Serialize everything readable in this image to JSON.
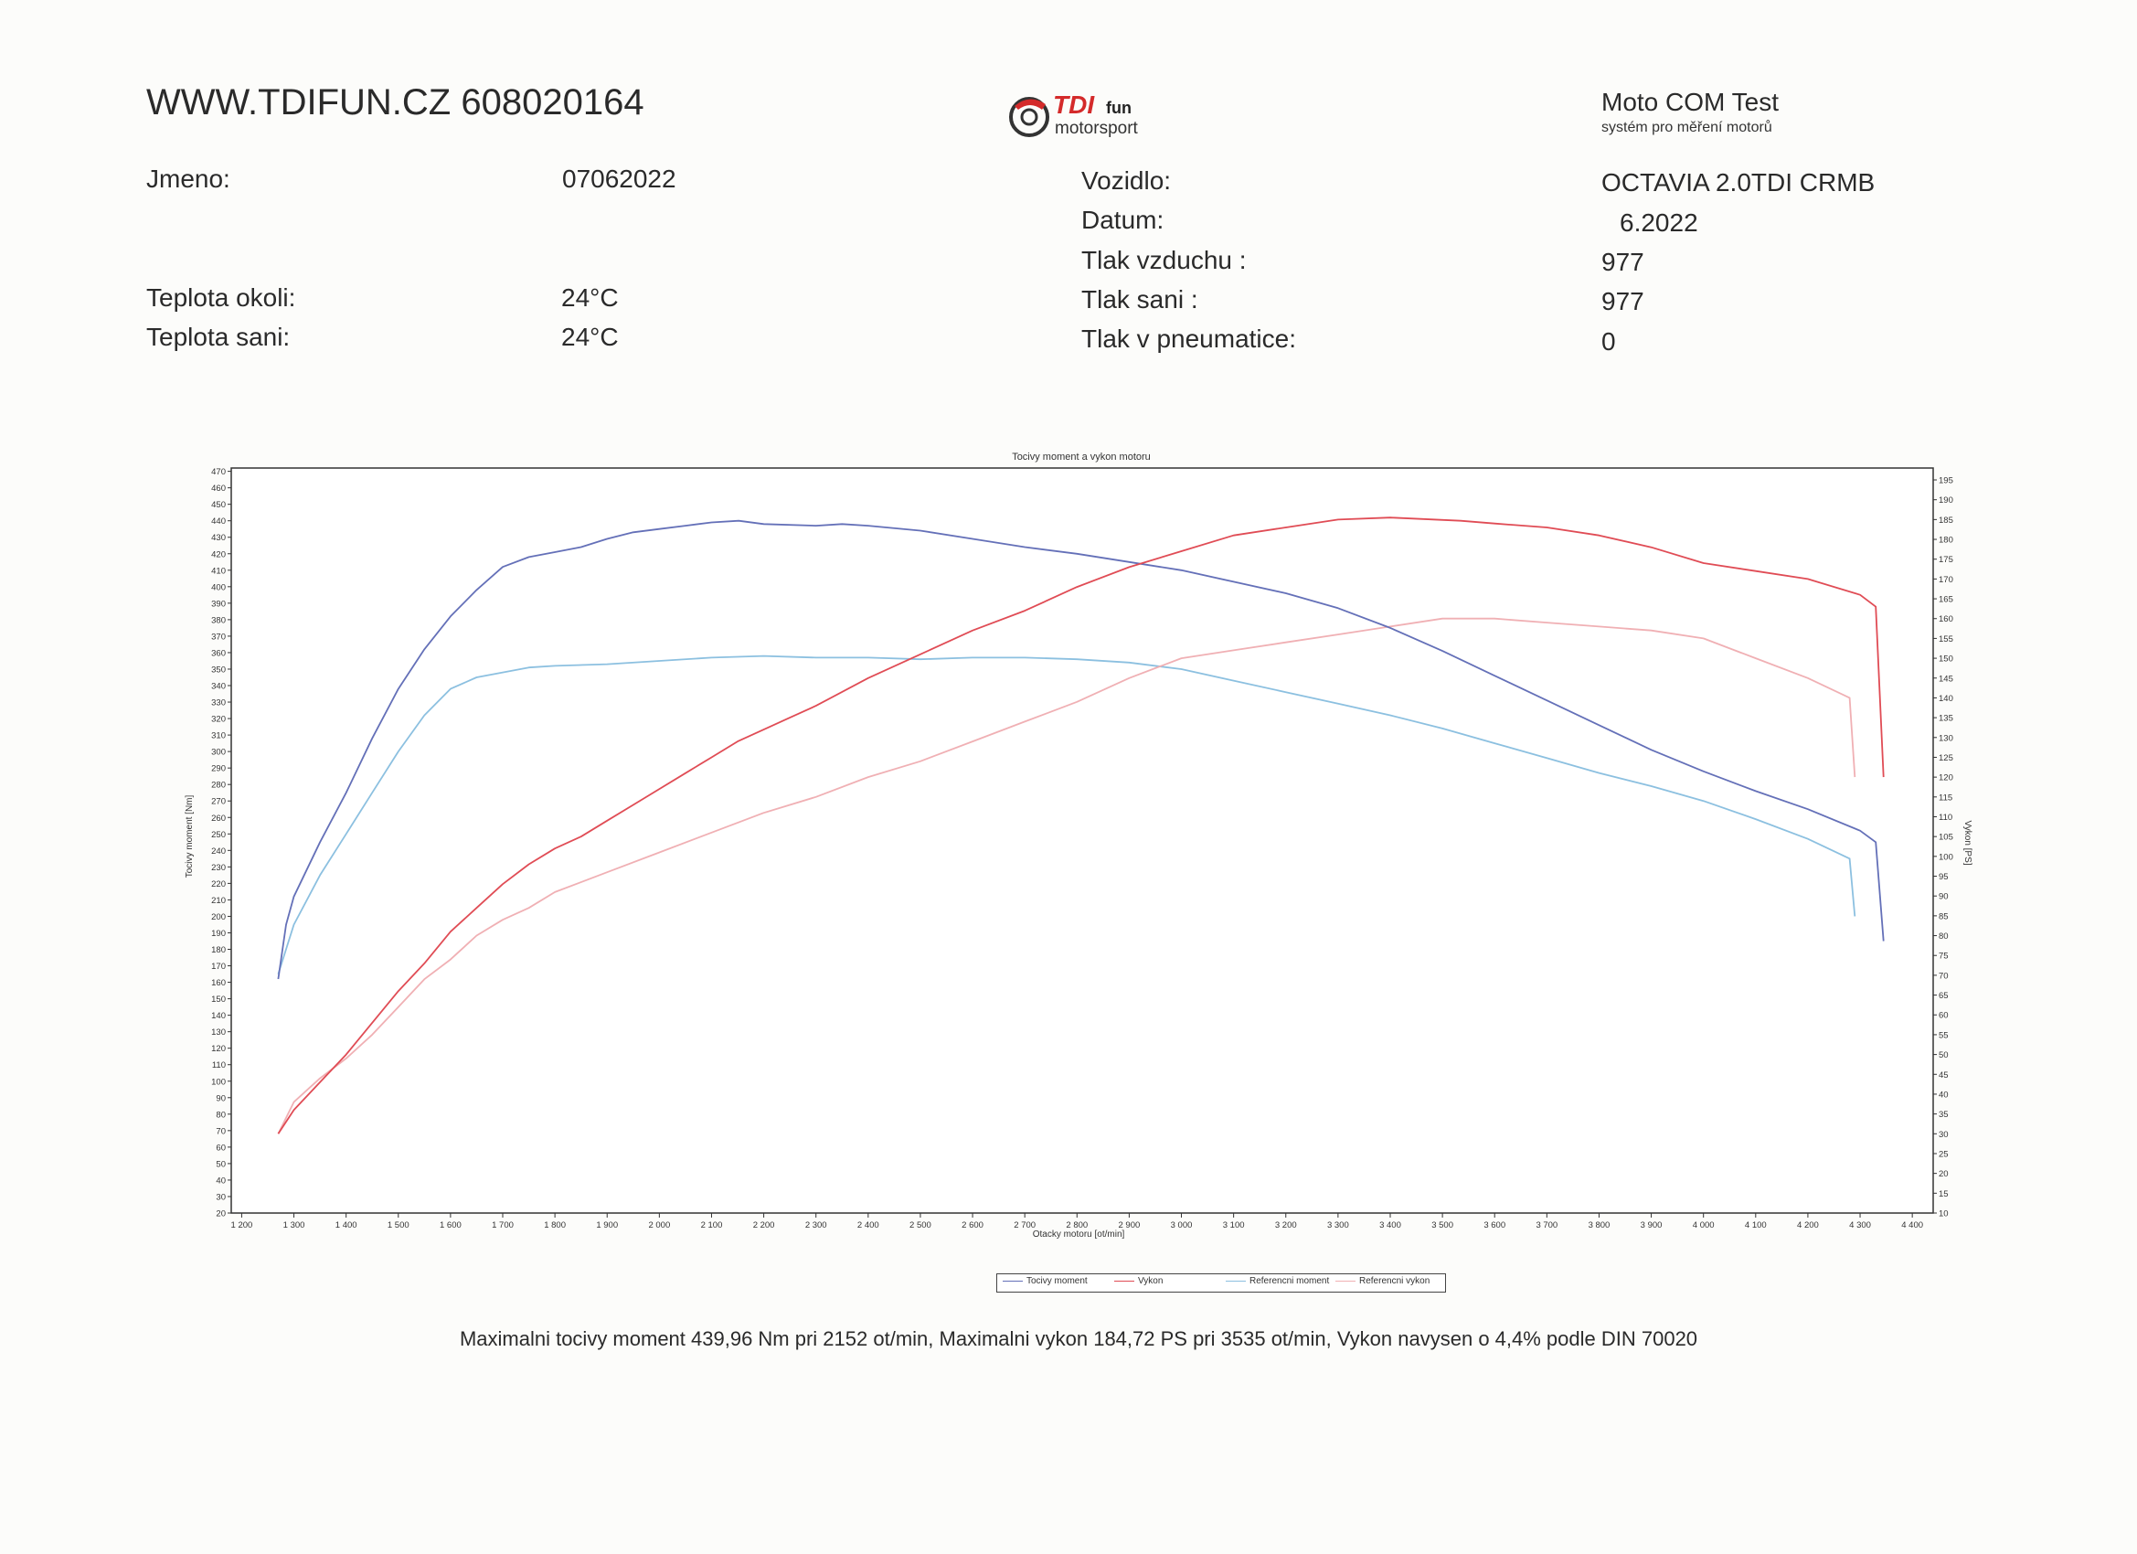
{
  "header": {
    "site": "WWW.TDIFUN.CZ 608020164",
    "logo_text_main": "TDI",
    "logo_text_fun": "fun",
    "logo_text_sub": "motorsport",
    "brand": "Moto COM Test",
    "brand_sub": "systém pro měření motorů"
  },
  "info_left": [
    {
      "label": "Jmeno:",
      "value": "07062022"
    },
    {
      "label": "Teplota okoli:",
      "value": "24°C"
    },
    {
      "label": "Teplota sani:",
      "value": "24°C"
    }
  ],
  "info_right": [
    {
      "label": "Vozidlo:",
      "value": "OCTAVIA 2.0TDI CRMB"
    },
    {
      "label": "Datum:",
      "value": "6.2022"
    },
    {
      "label": "Tlak vzduchu :",
      "value": "977"
    },
    {
      "label": "Tlak sani :",
      "value": "977"
    },
    {
      "label": "Tlak v pneumatice:",
      "value": "0"
    }
  ],
  "summary": "Maximalni tocivy moment 439,96 Nm pri 2152 ot/min,  Maximalni vykon 184,72 PS pri 3535 ot/min,  Vykon navysen o 4,4% podle DIN 70020",
  "chart_data": {
    "type": "line",
    "title": "Tocivy moment a vykon motoru",
    "xlabel": "Otacky motoru [ot/min]",
    "ylabel": "Tocivy moment [Nm]",
    "y2label": "Vykon [PS]",
    "xlim": [
      1180,
      4440
    ],
    "ylim": [
      20,
      472
    ],
    "y2lim": [
      10,
      198
    ],
    "x_ticks": [
      1200,
      1300,
      1400,
      1500,
      1600,
      1700,
      1800,
      1900,
      2000,
      2100,
      2200,
      2300,
      2400,
      2500,
      2600,
      2700,
      2800,
      2900,
      3000,
      3100,
      3200,
      3300,
      3400,
      3500,
      3600,
      3700,
      3800,
      3900,
      4000,
      4100,
      4200,
      4300,
      4400
    ],
    "x_tick_labels": [
      "1 200",
      "1 300",
      "1 400",
      "1 500",
      "1 600",
      "1 700",
      "1 800",
      "1 900",
      "2 000",
      "2 100",
      "2 200",
      "2 300",
      "2 400",
      "2 500",
      "2 600",
      "2 700",
      "2 800",
      "2 900",
      "3 000",
      "3 100",
      "3 200",
      "3 300",
      "3 400",
      "3 500",
      "3 600",
      "3 700",
      "3 800",
      "3 900",
      "4 000",
      "4 100",
      "4 200",
      "4 300",
      "4 400"
    ],
    "y_ticks": [
      20,
      30,
      40,
      50,
      60,
      70,
      80,
      90,
      100,
      110,
      120,
      130,
      140,
      150,
      160,
      170,
      180,
      190,
      200,
      210,
      220,
      230,
      240,
      250,
      260,
      270,
      280,
      290,
      300,
      310,
      320,
      330,
      340,
      350,
      360,
      370,
      380,
      390,
      400,
      410,
      420,
      430,
      440,
      450,
      460,
      470
    ],
    "y2_ticks": [
      10,
      15,
      20,
      25,
      30,
      35,
      40,
      45,
      50,
      55,
      60,
      65,
      70,
      75,
      80,
      85,
      90,
      95,
      100,
      105,
      110,
      115,
      120,
      125,
      130,
      135,
      140,
      145,
      150,
      155,
      160,
      165,
      170,
      175,
      180,
      185,
      190,
      195
    ],
    "grid": true,
    "legend_position": "bottom",
    "series": [
      {
        "name": "Tocivy moment",
        "axis": "left",
        "color": "#6470b8",
        "points": [
          [
            1270,
            162
          ],
          [
            1285,
            195
          ],
          [
            1300,
            212
          ],
          [
            1350,
            245
          ],
          [
            1400,
            275
          ],
          [
            1450,
            308
          ],
          [
            1500,
            338
          ],
          [
            1550,
            362
          ],
          [
            1600,
            382
          ],
          [
            1650,
            398
          ],
          [
            1700,
            412
          ],
          [
            1750,
            418
          ],
          [
            1800,
            421
          ],
          [
            1850,
            424
          ],
          [
            1900,
            429
          ],
          [
            1950,
            433
          ],
          [
            2000,
            435
          ],
          [
            2050,
            437
          ],
          [
            2100,
            439
          ],
          [
            2152,
            440
          ],
          [
            2200,
            438
          ],
          [
            2300,
            437
          ],
          [
            2350,
            438
          ],
          [
            2400,
            437
          ],
          [
            2500,
            434
          ],
          [
            2600,
            429
          ],
          [
            2700,
            424
          ],
          [
            2800,
            420
          ],
          [
            2900,
            415
          ],
          [
            3000,
            410
          ],
          [
            3100,
            403
          ],
          [
            3200,
            396
          ],
          [
            3300,
            387
          ],
          [
            3400,
            375
          ],
          [
            3500,
            361
          ],
          [
            3600,
            346
          ],
          [
            3700,
            331
          ],
          [
            3800,
            316
          ],
          [
            3900,
            301
          ],
          [
            4000,
            288
          ],
          [
            4100,
            276
          ],
          [
            4200,
            265
          ],
          [
            4300,
            252
          ],
          [
            4330,
            245
          ],
          [
            4345,
            185
          ]
        ]
      },
      {
        "name": "Vykon",
        "axis": "right",
        "color": "#e04c55",
        "points": [
          [
            1270,
            30
          ],
          [
            1300,
            36
          ],
          [
            1350,
            43
          ],
          [
            1400,
            50
          ],
          [
            1450,
            58
          ],
          [
            1500,
            66
          ],
          [
            1550,
            73
          ],
          [
            1600,
            81
          ],
          [
            1650,
            87
          ],
          [
            1700,
            93
          ],
          [
            1750,
            98
          ],
          [
            1800,
            102
          ],
          [
            1850,
            105
          ],
          [
            1900,
            109
          ],
          [
            1950,
            113
          ],
          [
            2000,
            117
          ],
          [
            2050,
            121
          ],
          [
            2100,
            125
          ],
          [
            2150,
            129
          ],
          [
            2200,
            132
          ],
          [
            2250,
            135
          ],
          [
            2300,
            138
          ],
          [
            2400,
            145
          ],
          [
            2500,
            151
          ],
          [
            2600,
            157
          ],
          [
            2700,
            162
          ],
          [
            2800,
            168
          ],
          [
            2900,
            173
          ],
          [
            3000,
            177
          ],
          [
            3100,
            181
          ],
          [
            3200,
            183
          ],
          [
            3300,
            185
          ],
          [
            3400,
            185.5
          ],
          [
            3535,
            184.7
          ],
          [
            3600,
            184
          ],
          [
            3700,
            183
          ],
          [
            3800,
            181
          ],
          [
            3900,
            178
          ],
          [
            4000,
            174
          ],
          [
            4100,
            172
          ],
          [
            4200,
            170
          ],
          [
            4300,
            166
          ],
          [
            4330,
            163
          ],
          [
            4345,
            120
          ]
        ]
      },
      {
        "name": "Referencni moment",
        "axis": "left",
        "color": "#8cc0e0",
        "points": [
          [
            1270,
            165
          ],
          [
            1300,
            195
          ],
          [
            1350,
            225
          ],
          [
            1400,
            250
          ],
          [
            1450,
            275
          ],
          [
            1500,
            300
          ],
          [
            1550,
            322
          ],
          [
            1600,
            338
          ],
          [
            1650,
            345
          ],
          [
            1700,
            348
          ],
          [
            1750,
            351
          ],
          [
            1800,
            352
          ],
          [
            1900,
            353
          ],
          [
            2000,
            355
          ],
          [
            2100,
            357
          ],
          [
            2200,
            358
          ],
          [
            2300,
            357
          ],
          [
            2400,
            357
          ],
          [
            2500,
            356
          ],
          [
            2600,
            357
          ],
          [
            2700,
            357
          ],
          [
            2800,
            356
          ],
          [
            2900,
            354
          ],
          [
            3000,
            350
          ],
          [
            3100,
            343
          ],
          [
            3200,
            336
          ],
          [
            3300,
            329
          ],
          [
            3400,
            322
          ],
          [
            3500,
            314
          ],
          [
            3600,
            305
          ],
          [
            3700,
            296
          ],
          [
            3800,
            287
          ],
          [
            3900,
            279
          ],
          [
            4000,
            270
          ],
          [
            4100,
            259
          ],
          [
            4200,
            247
          ],
          [
            4280,
            235
          ],
          [
            4290,
            200
          ]
        ]
      },
      {
        "name": "Referencni vykon",
        "axis": "right",
        "color": "#f0b0b4",
        "points": [
          [
            1270,
            30
          ],
          [
            1300,
            38
          ],
          [
            1350,
            44
          ],
          [
            1400,
            49
          ],
          [
            1450,
            55
          ],
          [
            1500,
            62
          ],
          [
            1550,
            69
          ],
          [
            1600,
            74
          ],
          [
            1650,
            80
          ],
          [
            1700,
            84
          ],
          [
            1750,
            87
          ],
          [
            1800,
            91
          ],
          [
            1900,
            96
          ],
          [
            2000,
            101
          ],
          [
            2100,
            106
          ],
          [
            2200,
            111
          ],
          [
            2300,
            115
          ],
          [
            2400,
            120
          ],
          [
            2500,
            124
          ],
          [
            2600,
            129
          ],
          [
            2700,
            134
          ],
          [
            2800,
            139
          ],
          [
            2900,
            145
          ],
          [
            3000,
            150
          ],
          [
            3100,
            152
          ],
          [
            3200,
            154
          ],
          [
            3300,
            156
          ],
          [
            3400,
            158
          ],
          [
            3500,
            160
          ],
          [
            3600,
            160
          ],
          [
            3700,
            159
          ],
          [
            3800,
            158
          ],
          [
            3900,
            157
          ],
          [
            4000,
            155
          ],
          [
            4100,
            150
          ],
          [
            4200,
            145
          ],
          [
            4280,
            140
          ],
          [
            4290,
            120
          ]
        ]
      }
    ]
  }
}
